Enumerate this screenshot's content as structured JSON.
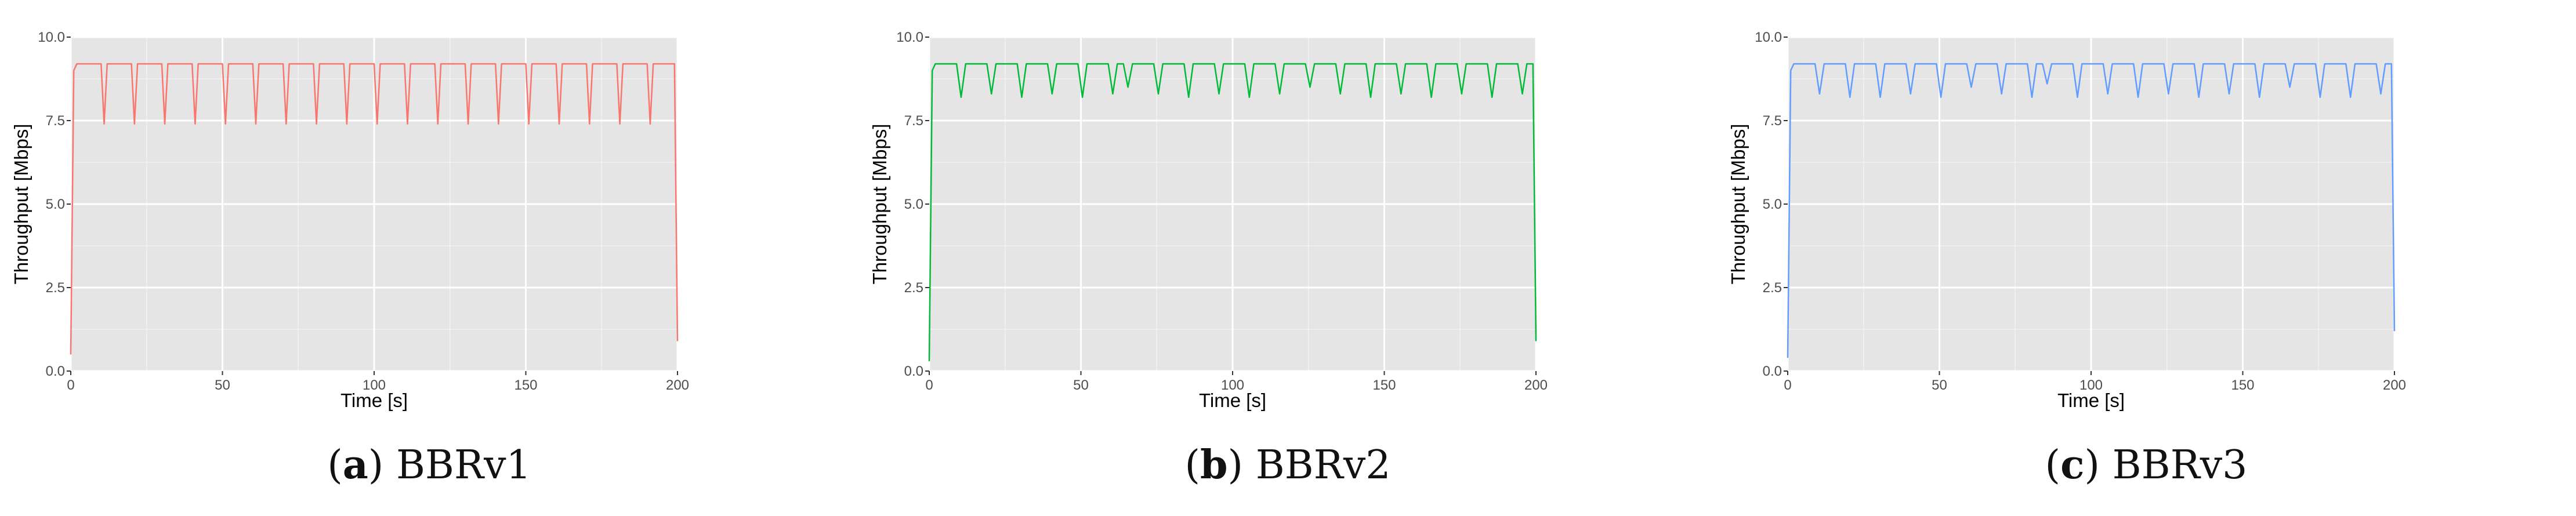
{
  "chart_data": [
    {
      "type": "line",
      "caption_letter": "a",
      "caption_text": "BBRv1",
      "xlabel": "Time [s]",
      "ylabel": "Throughput [Mbps]",
      "xlim": [
        0,
        200
      ],
      "ylim": [
        0,
        10
      ],
      "xticks": [
        0,
        50,
        100,
        150,
        200
      ],
      "xtick_labels": [
        "0",
        "50",
        "100",
        "150",
        "200"
      ],
      "yticks": [
        0,
        2.5,
        5,
        7.5,
        10
      ],
      "ytick_labels": [
        "0.0",
        "2.5",
        "5.0",
        "7.5",
        "10.0"
      ],
      "grid": true,
      "series": [
        {
          "color": "#f8766d",
          "x": [
            0,
            1,
            2,
            10,
            11,
            12,
            20,
            21,
            22,
            30,
            31,
            32,
            40,
            41,
            42,
            50,
            51,
            52,
            60,
            61,
            62,
            70,
            71,
            72,
            80,
            81,
            82,
            90,
            91,
            92,
            100,
            101,
            102,
            110,
            111,
            112,
            120,
            121,
            122,
            130,
            131,
            132,
            140,
            141,
            142,
            150,
            151,
            152,
            160,
            161,
            162,
            170,
            171,
            172,
            180,
            181,
            182,
            190,
            191,
            192,
            199,
            200
          ],
          "y": [
            0.5,
            9.0,
            9.2,
            9.2,
            7.4,
            9.2,
            9.2,
            7.4,
            9.2,
            9.2,
            7.4,
            9.2,
            9.2,
            7.4,
            9.2,
            9.2,
            7.4,
            9.2,
            9.2,
            7.4,
            9.2,
            9.2,
            7.4,
            9.2,
            9.2,
            7.4,
            9.2,
            9.2,
            7.4,
            9.2,
            9.2,
            7.4,
            9.2,
            9.2,
            7.4,
            9.2,
            9.2,
            7.4,
            9.2,
            9.2,
            7.4,
            9.2,
            9.2,
            7.4,
            9.2,
            9.2,
            7.4,
            9.2,
            9.2,
            7.4,
            9.2,
            9.2,
            7.4,
            9.2,
            9.2,
            7.4,
            9.2,
            9.2,
            7.4,
            9.2,
            9.2,
            0.9
          ]
        }
      ]
    },
    {
      "type": "line",
      "caption_letter": "b",
      "caption_text": "BBRv2",
      "xlabel": "Time [s]",
      "ylabel": "Throughput [Mbps]",
      "xlim": [
        0,
        200
      ],
      "ylim": [
        0,
        10
      ],
      "xticks": [
        0,
        50,
        100,
        150,
        200
      ],
      "xtick_labels": [
        "0",
        "50",
        "100",
        "150",
        "200"
      ],
      "yticks": [
        0,
        2.5,
        5,
        7.5,
        10
      ],
      "ytick_labels": [
        "0.0",
        "2.5",
        "5.0",
        "7.5",
        "10.0"
      ],
      "grid": true,
      "series": [
        {
          "color": "#00ba38",
          "x": [
            0,
            1,
            2,
            9,
            10.5,
            12,
            19,
            20.5,
            22,
            29,
            30.5,
            32,
            39,
            40.5,
            42,
            49,
            50.5,
            52,
            59,
            60.5,
            62,
            64,
            65.5,
            67,
            74,
            75.5,
            77,
            84,
            85.5,
            87,
            94,
            95.5,
            97,
            104,
            105.5,
            107,
            114,
            115.5,
            117,
            124,
            125.5,
            127,
            134,
            135.5,
            137,
            144,
            145.5,
            147,
            154,
            155.5,
            157,
            164,
            165.5,
            167,
            174,
            175.5,
            177,
            184,
            185.5,
            187,
            194,
            195.5,
            197,
            199,
            200
          ],
          "y": [
            0.3,
            9.0,
            9.2,
            9.2,
            8.2,
            9.2,
            9.2,
            8.3,
            9.2,
            9.2,
            8.2,
            9.2,
            9.2,
            8.3,
            9.2,
            9.2,
            8.2,
            9.2,
            9.2,
            8.3,
            9.2,
            9.2,
            8.5,
            9.2,
            9.2,
            8.3,
            9.2,
            9.2,
            8.2,
            9.2,
            9.2,
            8.3,
            9.2,
            9.2,
            8.2,
            9.2,
            9.2,
            8.3,
            9.2,
            9.2,
            8.5,
            9.2,
            9.2,
            8.3,
            9.2,
            9.2,
            8.2,
            9.2,
            9.2,
            8.3,
            9.2,
            9.2,
            8.2,
            9.2,
            9.2,
            8.3,
            9.2,
            9.2,
            8.2,
            9.2,
            9.2,
            8.3,
            9.2,
            9.2,
            0.9
          ]
        }
      ]
    },
    {
      "type": "line",
      "caption_letter": "c",
      "caption_text": "BBRv3",
      "xlabel": "Time [s]",
      "ylabel": "Throughput [Mbps]",
      "xlim": [
        0,
        200
      ],
      "ylim": [
        0,
        10
      ],
      "xticks": [
        0,
        50,
        100,
        150,
        200
      ],
      "xtick_labels": [
        "0",
        "50",
        "100",
        "150",
        "200"
      ],
      "yticks": [
        0,
        2.5,
        5,
        7.5,
        10
      ],
      "ytick_labels": [
        "0.0",
        "2.5",
        "5.0",
        "7.5",
        "10.0"
      ],
      "grid": true,
      "series": [
        {
          "color": "#619cff",
          "x": [
            0,
            1,
            2,
            9,
            10.5,
            12,
            19,
            20.5,
            22,
            29,
            30.5,
            32,
            39,
            40.5,
            42,
            49,
            50.5,
            52,
            59,
            60.5,
            62,
            69,
            70.5,
            72,
            79,
            80.5,
            82,
            84,
            85.5,
            87,
            94,
            95.5,
            97,
            104,
            105.5,
            107,
            114,
            115.5,
            117,
            124,
            125.5,
            127,
            134,
            135.5,
            137,
            144,
            145.5,
            147,
            154,
            155.5,
            157,
            164,
            165.5,
            167,
            174,
            175.5,
            177,
            184,
            185.5,
            187,
            194,
            195.5,
            197,
            199,
            200
          ],
          "y": [
            0.4,
            9.0,
            9.2,
            9.2,
            8.3,
            9.2,
            9.2,
            8.2,
            9.2,
            9.2,
            8.2,
            9.2,
            9.2,
            8.3,
            9.2,
            9.2,
            8.2,
            9.2,
            9.2,
            8.5,
            9.2,
            9.2,
            8.3,
            9.2,
            9.2,
            8.2,
            9.2,
            9.2,
            8.6,
            9.2,
            9.2,
            8.2,
            9.2,
            9.2,
            8.3,
            9.2,
            9.2,
            8.2,
            9.2,
            9.2,
            8.3,
            9.2,
            9.2,
            8.2,
            9.2,
            9.2,
            8.3,
            9.2,
            9.2,
            8.2,
            9.2,
            9.2,
            8.5,
            9.2,
            9.2,
            8.2,
            9.2,
            9.2,
            8.2,
            9.2,
            9.2,
            8.3,
            9.2,
            9.2,
            1.2
          ]
        }
      ]
    }
  ]
}
